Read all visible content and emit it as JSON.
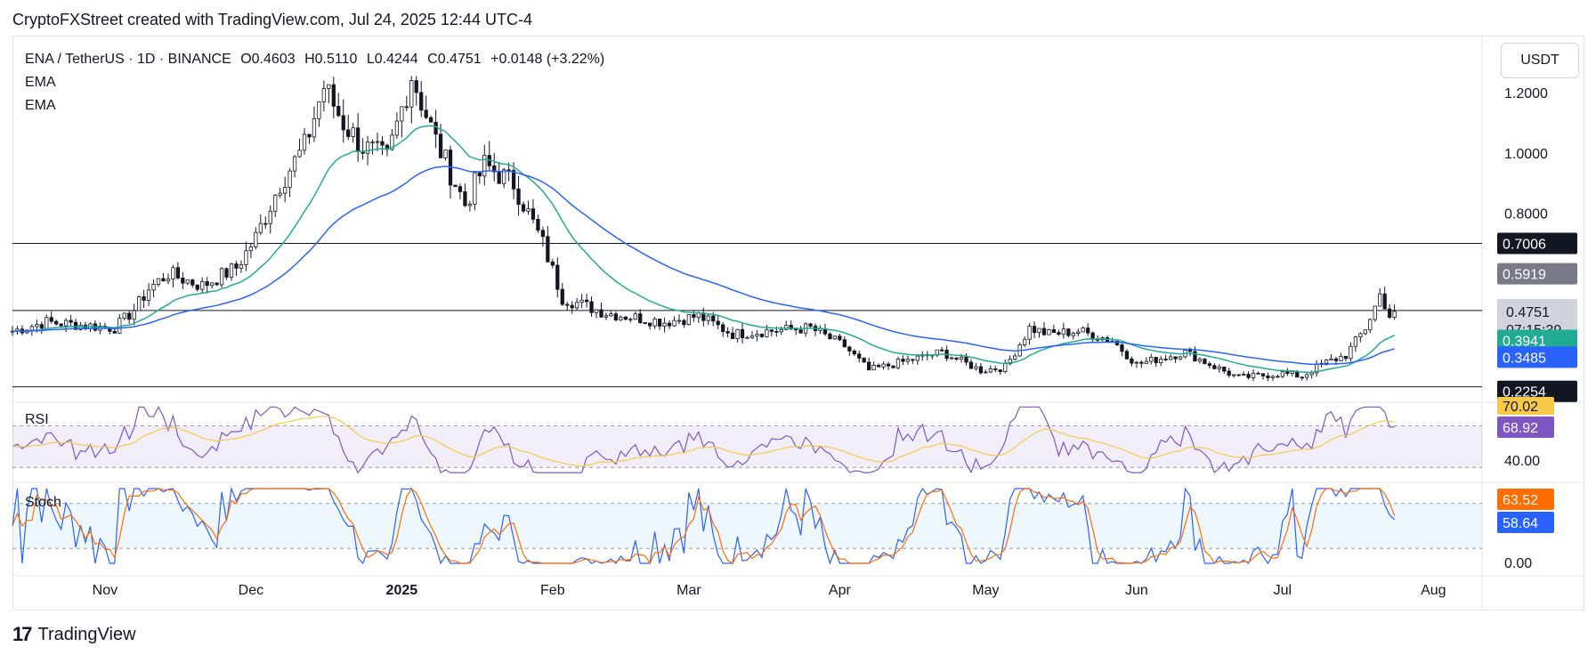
{
  "credit": "CryptoFXStreet created with TradingView.com, Jul 24, 2025 12:44 UTC-4",
  "legend": {
    "symbol": "ENA / TetherUS · 1D · BINANCE",
    "open": "O0.4603",
    "high": "H0.5110",
    "low": "L0.4244",
    "close": "C0.4751",
    "change": "+0.0148 (+3.22%)",
    "ema1": "EMA",
    "ema2": "EMA"
  },
  "unit_button": "USDT",
  "rsi_label": "RSI",
  "stoch_label": "Stoch",
  "footer_logo": "TradingView",
  "logo_mark": "17",
  "colors": {
    "up": "#131722",
    "ema_fast": "#22ab94",
    "ema_slow": "#2962ff",
    "rsi": "#7e57c2",
    "rsi_ma": "#f7c948",
    "stoch_k": "#2962ff",
    "stoch_d": "#ff6d00",
    "level_line": "#131722"
  },
  "chart_data": [
    {
      "type": "line",
      "title": "ENA / TetherUS · 1D · BINANCE",
      "price_axis_ticks": [
        "1.2000",
        "1.0000",
        "0.8000"
      ],
      "price_axis_range": [
        0.18,
        1.33
      ],
      "horizontal_levels": [
        0.7006,
        0.4781,
        0.2254
      ],
      "time_axis_labels": [
        "Nov",
        "Dec",
        "2025",
        "Feb",
        "Mar",
        "Apr",
        "May",
        "Jun",
        "Jul",
        "Aug"
      ],
      "price_anchors": [
        {
          "x": "2024-10-13",
          "y": 0.41
        },
        {
          "x": "2024-10-20",
          "y": 0.44
        },
        {
          "x": "2024-10-27",
          "y": 0.43
        },
        {
          "x": "2024-11-03",
          "y": 0.42
        },
        {
          "x": "2024-11-07",
          "y": 0.48
        },
        {
          "x": "2024-11-10",
          "y": 0.55
        },
        {
          "x": "2024-11-14",
          "y": 0.6
        },
        {
          "x": "2024-11-21",
          "y": 0.56
        },
        {
          "x": "2024-11-28",
          "y": 0.62
        },
        {
          "x": "2024-12-02",
          "y": 0.72
        },
        {
          "x": "2024-12-07",
          "y": 0.9
        },
        {
          "x": "2024-12-12",
          "y": 1.02
        },
        {
          "x": "2024-12-16",
          "y": 1.22
        },
        {
          "x": "2024-12-20",
          "y": 1.1
        },
        {
          "x": "2024-12-24",
          "y": 1.02
        },
        {
          "x": "2024-12-29",
          "y": 0.98
        },
        {
          "x": "2025-01-03",
          "y": 1.26
        },
        {
          "x": "2025-01-08",
          "y": 1.04
        },
        {
          "x": "2025-01-14",
          "y": 0.83
        },
        {
          "x": "2025-01-18",
          "y": 0.96
        },
        {
          "x": "2025-01-24",
          "y": 0.9
        },
        {
          "x": "2025-01-30",
          "y": 0.7
        },
        {
          "x": "2025-02-03",
          "y": 0.52
        },
        {
          "x": "2025-02-12",
          "y": 0.47
        },
        {
          "x": "2025-02-24",
          "y": 0.44
        },
        {
          "x": "2025-03-03",
          "y": 0.46
        },
        {
          "x": "2025-03-10",
          "y": 0.4
        },
        {
          "x": "2025-03-17",
          "y": 0.41
        },
        {
          "x": "2025-03-26",
          "y": 0.42
        },
        {
          "x": "2025-04-02",
          "y": 0.36
        },
        {
          "x": "2025-04-07",
          "y": 0.28
        },
        {
          "x": "2025-04-12",
          "y": 0.3
        },
        {
          "x": "2025-04-22",
          "y": 0.34
        },
        {
          "x": "2025-04-30",
          "y": 0.28
        },
        {
          "x": "2025-05-05",
          "y": 0.29
        },
        {
          "x": "2025-05-10",
          "y": 0.42
        },
        {
          "x": "2025-05-14",
          "y": 0.4
        },
        {
          "x": "2025-05-20",
          "y": 0.41
        },
        {
          "x": "2025-05-27",
          "y": 0.38
        },
        {
          "x": "2025-06-01",
          "y": 0.3
        },
        {
          "x": "2025-06-11",
          "y": 0.34
        },
        {
          "x": "2025-06-16",
          "y": 0.3
        },
        {
          "x": "2025-06-22",
          "y": 0.255
        },
        {
          "x": "2025-07-01",
          "y": 0.27
        },
        {
          "x": "2025-07-05",
          "y": 0.26
        },
        {
          "x": "2025-07-09",
          "y": 0.3
        },
        {
          "x": "2025-07-14",
          "y": 0.33
        },
        {
          "x": "2025-07-18",
          "y": 0.42
        },
        {
          "x": "2025-07-20",
          "y": 0.49
        },
        {
          "x": "2025-07-21",
          "y": 0.53
        },
        {
          "x": "2025-07-22",
          "y": 0.5
        },
        {
          "x": "2025-07-23",
          "y": 0.46
        },
        {
          "x": "2025-07-24",
          "y": 0.4751
        }
      ],
      "series": [
        {
          "values_ref": "ema_fast_last",
          "last": 0.3941
        },
        {
          "values_ref": "ema_slow_last",
          "last": 0.3485
        }
      ],
      "price_labels": {
        "level_high": "0.7006",
        "prev_high": "0.5919",
        "level_mid": "0.4781",
        "last_price": "0.4751",
        "countdown": "07:15:39",
        "ema_fast": "0.3941",
        "ema_slow": "0.3485",
        "level_low": "0.2254"
      }
    },
    {
      "type": "line",
      "title": "RSI",
      "levels": [
        70,
        30
      ],
      "axis_ticks": [
        "70.02",
        "40.00"
      ],
      "value_labels": {
        "rsi_ma": "70.02",
        "rsi": "68.92"
      },
      "last": 68.92
    },
    {
      "type": "line",
      "title": "Stoch",
      "levels": [
        80,
        20
      ],
      "axis_ticks": [
        "0.00"
      ],
      "value_labels": {
        "d": "63.52",
        "k": "58.64"
      },
      "last_k": 58.64,
      "last_d": 63.52
    }
  ]
}
